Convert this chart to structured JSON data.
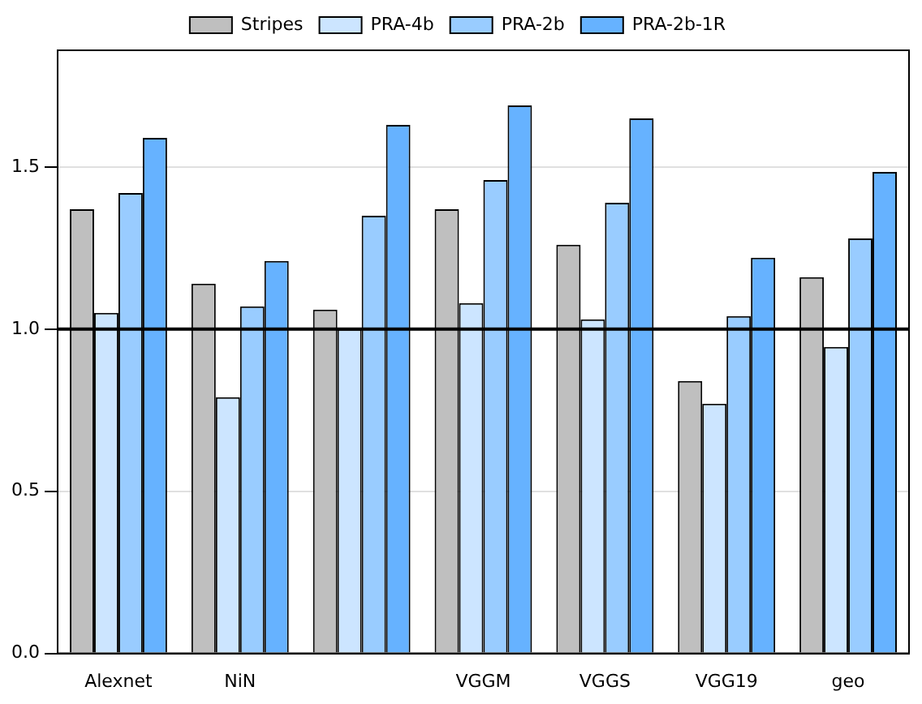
{
  "chart_data": {
    "type": "bar",
    "categories": [
      "Alexnet",
      "NiN",
      null,
      "VGGM",
      "VGGS",
      "VGG19",
      "geo"
    ],
    "series": [
      {
        "name": "Stripes",
        "color": "#bfbfbf",
        "values": [
          1.37,
          1.14,
          1.06,
          1.37,
          1.26,
          0.84,
          1.16
        ]
      },
      {
        "name": "PRA-4b",
        "color": "#cce5ff",
        "values": [
          1.05,
          0.79,
          1.0,
          1.08,
          1.03,
          0.77,
          0.945
        ]
      },
      {
        "name": "PRA-2b",
        "color": "#99ccff",
        "values": [
          1.42,
          1.07,
          1.35,
          1.46,
          1.39,
          1.04,
          1.28
        ]
      },
      {
        "name": "PRA-2b-1R",
        "color": "#66b2ff",
        "values": [
          1.59,
          1.21,
          1.63,
          1.69,
          1.65,
          1.22,
          1.485
        ]
      }
    ],
    "ylim": [
      0,
      1.86
    ],
    "yticks": [
      {
        "value": 0,
        "label": "0.0"
      },
      {
        "value": 0.5,
        "label": "0.5"
      },
      {
        "value": 1,
        "label": "1.0"
      },
      {
        "value": 1.5,
        "label": "1.5"
      }
    ],
    "grid": "y",
    "legend": "top",
    "ref_lines": [
      {
        "axis": "y",
        "value": 1,
        "color": "#000000"
      }
    ]
  }
}
